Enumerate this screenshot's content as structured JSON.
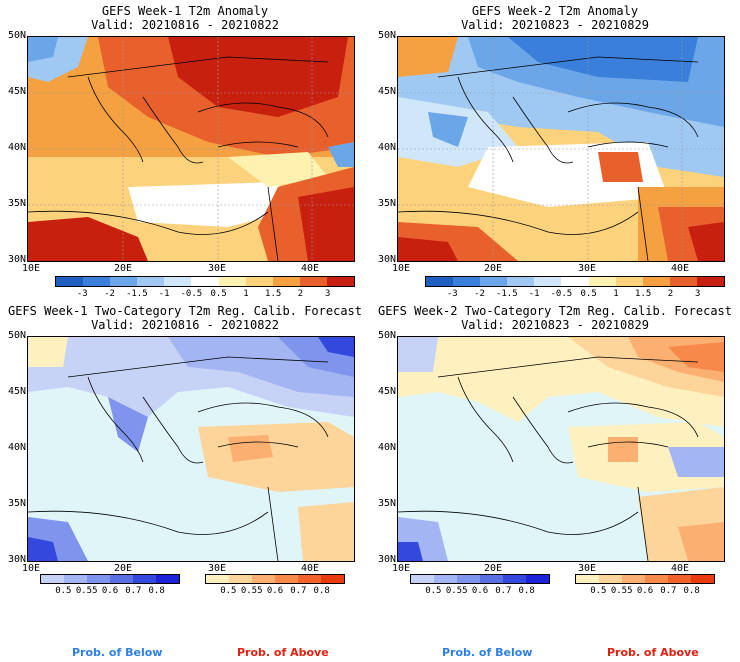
{
  "panels": [
    {
      "title": "GEFS Week-1 T2m Anomaly",
      "valid": "Valid: 20210816 - 20210822"
    },
    {
      "title": "GEFS Week-2 T2m Anomaly",
      "valid": "Valid: 20210823 - 20210829"
    },
    {
      "title": "GEFS Week-1 Two-Category T2m Reg. Calib. Forecast",
      "valid": "Valid: 20210816 - 20210822"
    },
    {
      "title": "GEFS Week-2 Two-Category T2m Reg. Calib. Forecast",
      "valid": "Valid: 20210823 - 20210829"
    }
  ],
  "lat_labels": [
    "50N",
    "45N",
    "40N",
    "35N",
    "30N"
  ],
  "lon_labels": [
    "10E",
    "20E",
    "30E",
    "40E"
  ],
  "anomaly_colorbar": {
    "labels": [
      "-3",
      "-2",
      "-1.5",
      "-1",
      "-0.5",
      "0.5",
      "1",
      "1.5",
      "2",
      "3"
    ],
    "colors": [
      "#1f5fbf",
      "#3a7fd9",
      "#6aa6e8",
      "#9fc8f2",
      "#d0e6fa",
      "#ffffff",
      "#fff2b0",
      "#fcd37c",
      "#f5a142",
      "#e8602c",
      "#c8200e"
    ]
  },
  "below_colorbar": {
    "labels": [
      "0.5",
      "0.55",
      "0.6",
      "0.7",
      "0.8"
    ],
    "colors": [
      "#c6d3f7",
      "#a3b5f2",
      "#7f94ec",
      "#5a6fe3",
      "#3348dc",
      "#1c22d6"
    ]
  },
  "above_colorbar": {
    "labels": [
      "0.5",
      "0.55",
      "0.6",
      "0.7",
      "0.8"
    ],
    "colors": [
      "#fff0c0",
      "#fdd49a",
      "#fbb072",
      "#f7894b",
      "#f2622a",
      "#e83c10"
    ]
  },
  "legend": {
    "below": "Prob. of Below",
    "above": "Prob. of Above"
  },
  "colors": {
    "sea_prob": "#e0f5f8",
    "below_text": "#2f7fe0",
    "above_text": "#e02010"
  }
}
